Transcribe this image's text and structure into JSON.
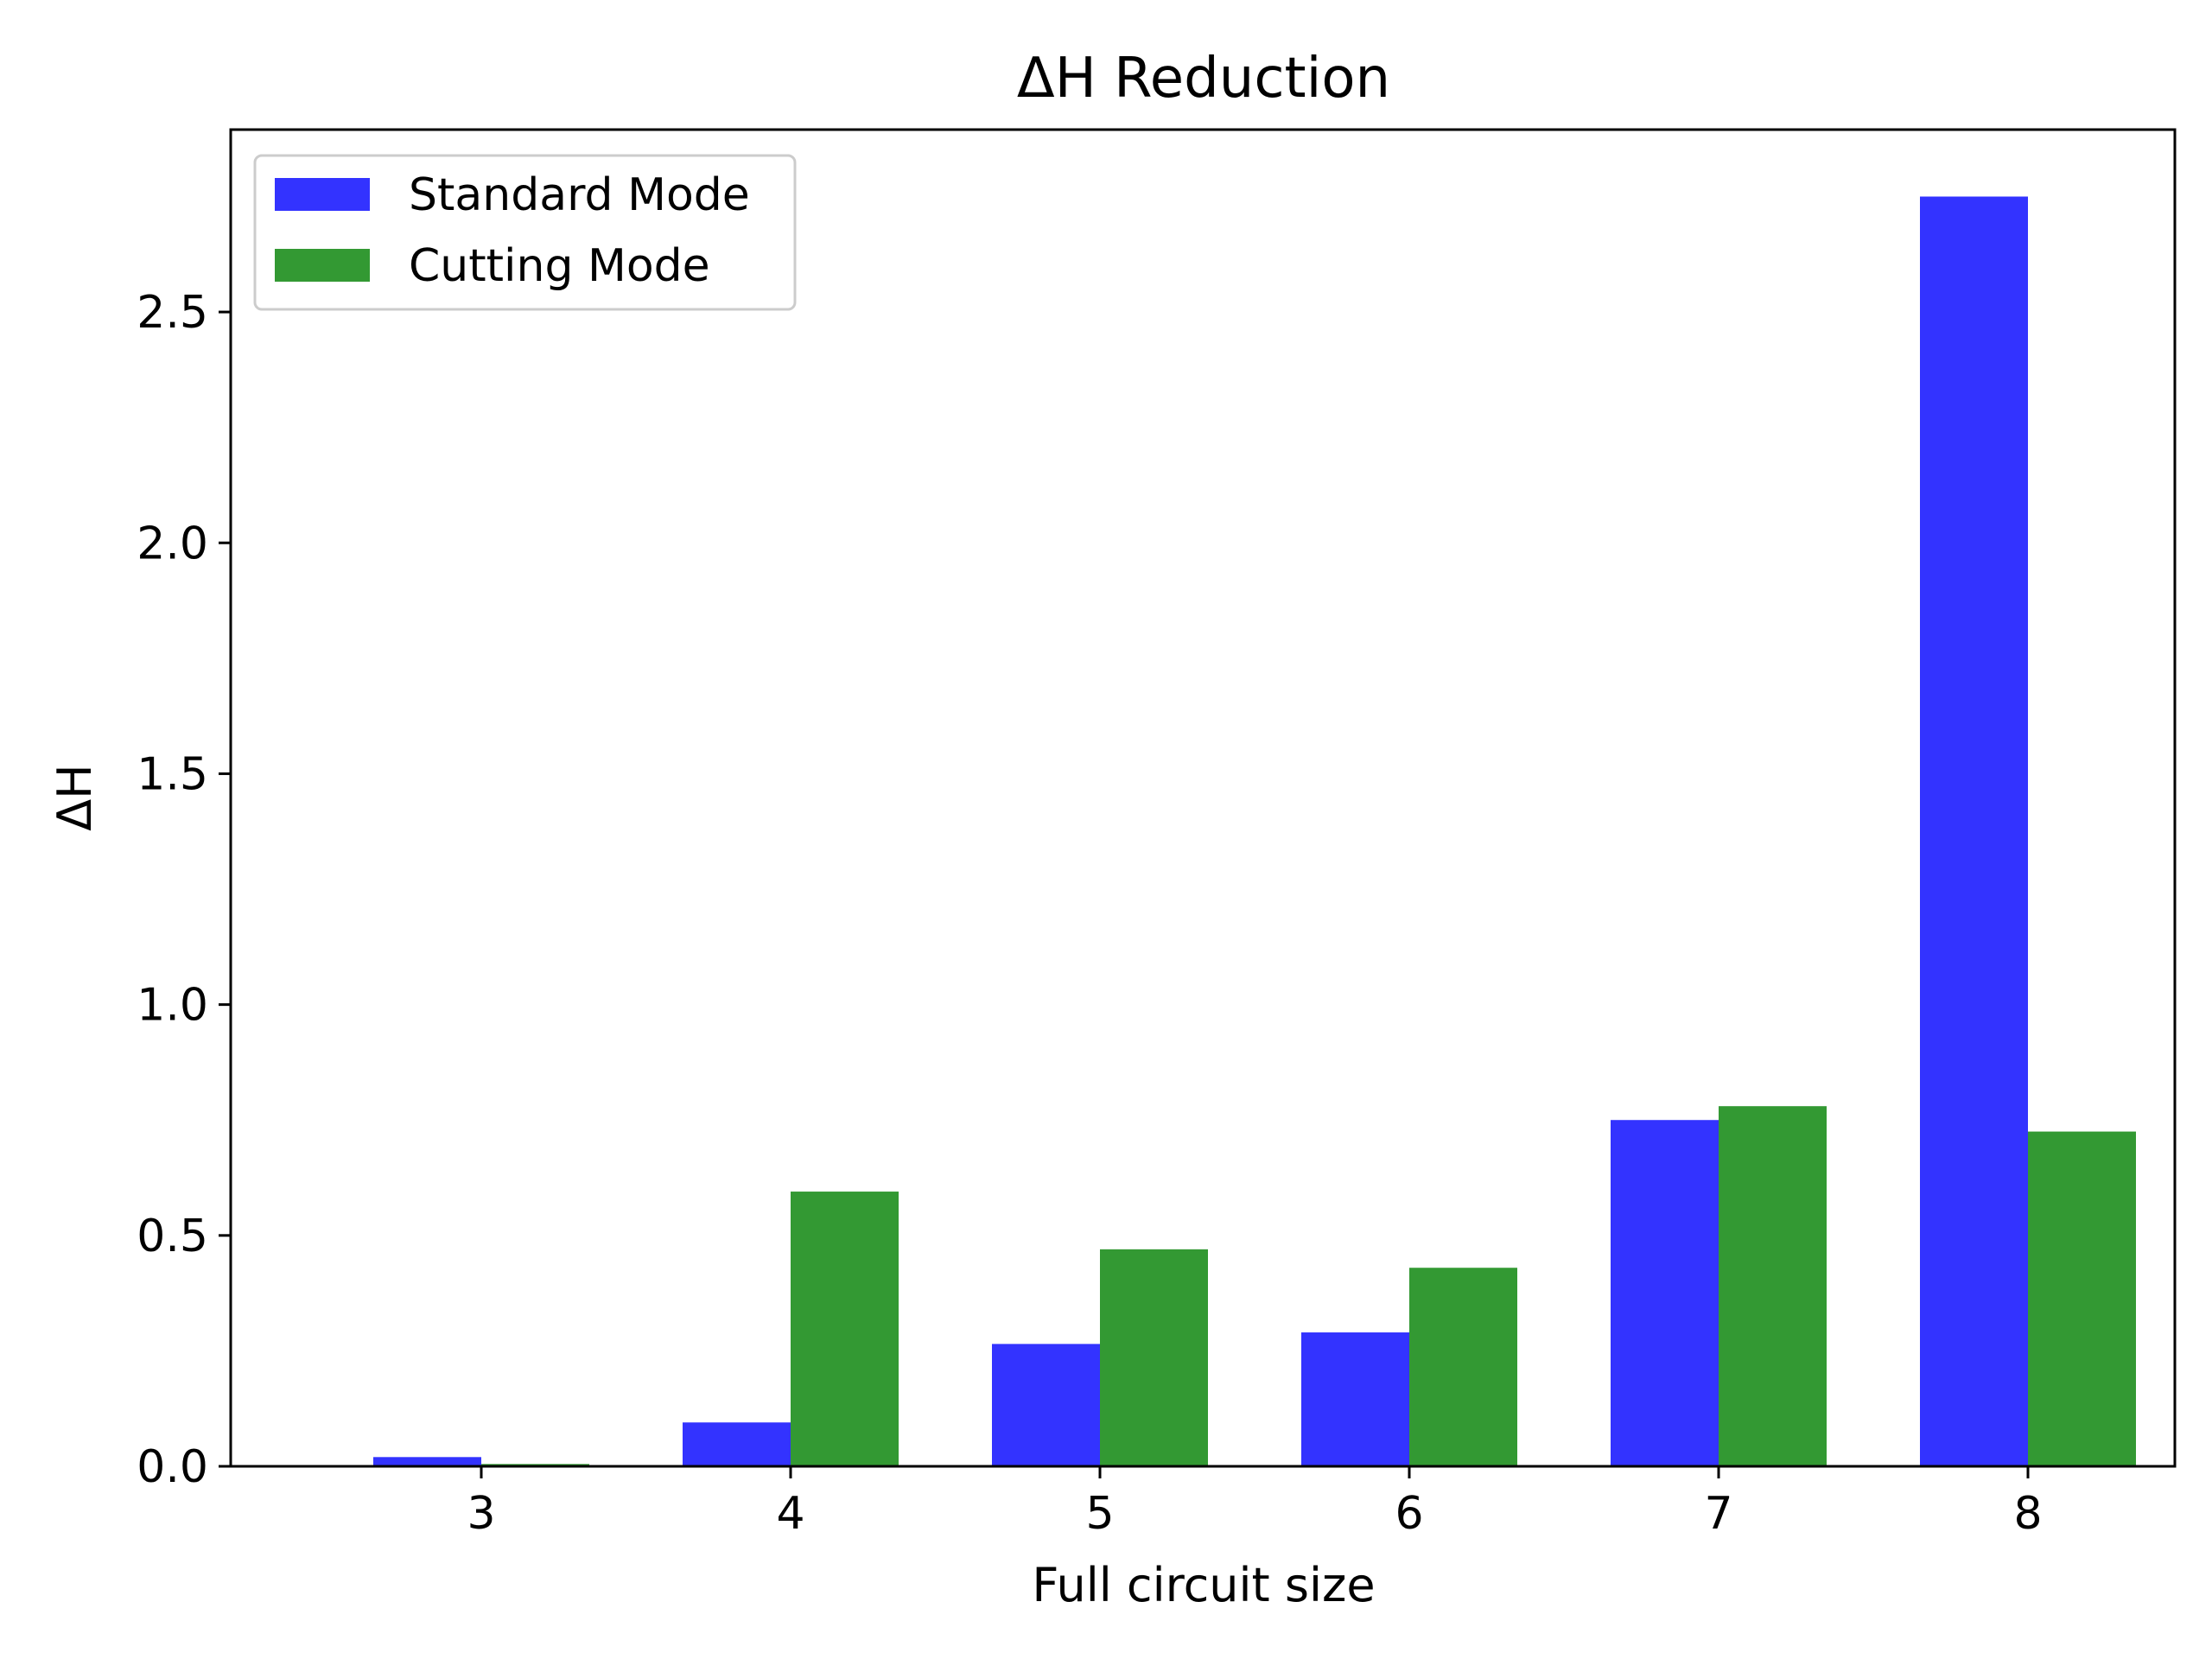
{
  "chart_data": {
    "type": "bar",
    "title": "ΔH Reduction",
    "xlabel": "Full circuit size",
    "ylabel": "ΔH",
    "categories": [
      "3",
      "4",
      "5",
      "6",
      "7",
      "8"
    ],
    "series": [
      {
        "name": "Standard Mode",
        "color": "#3333ff",
        "values": [
          0.02,
          0.095,
          0.265,
          0.29,
          0.75,
          2.75
        ]
      },
      {
        "name": "Cutting Mode",
        "color": "#339933",
        "values": [
          0.005,
          0.595,
          0.47,
          0.43,
          0.78,
          0.725
        ]
      }
    ],
    "ylim": [
      0,
      2.895
    ],
    "yticks": [
      "0.0",
      "0.5",
      "1.0",
      "1.5",
      "2.0",
      "2.5"
    ],
    "grid": false,
    "legend_position": "top-left"
  }
}
